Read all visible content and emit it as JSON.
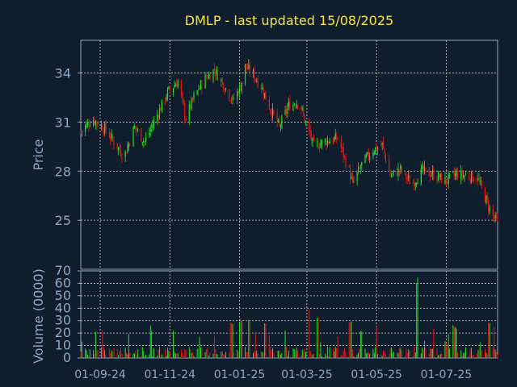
{
  "title": "DMLP - last updated 15/08/2025",
  "colors": {
    "background": "#0f1d2d",
    "axis": "#8aa9c6",
    "grid": "#c8d0d8",
    "title": "#f5e642",
    "up": "#22e022",
    "down": "#e01818"
  },
  "chart_data": [
    {
      "type": "candlestick",
      "title": "DMLP - last updated 15/08/2025",
      "ylabel": "Price",
      "ylim": [
        22,
        36
      ],
      "yticks": [
        25,
        28,
        31,
        34
      ],
      "xlim": [
        "2024-08-15",
        "2025-08-15"
      ],
      "xticks": [
        "2024-09-01",
        "2024-11-01",
        "2025-01-01",
        "2025-03-01",
        "2025-05-01",
        "2025-07-01"
      ],
      "xtick_labels": [
        "01-09-24",
        "01-11-24",
        "01-01-25",
        "01-03-25",
        "01-05-25",
        "01-07-25"
      ],
      "grid": true,
      "close_series": [
        [
          "2024-08-15",
          30.4
        ],
        [
          "2024-08-25",
          31.2
        ],
        [
          "2024-09-05",
          30.6
        ],
        [
          "2024-09-15",
          29.6
        ],
        [
          "2024-09-22",
          28.9
        ],
        [
          "2024-10-01",
          30.7
        ],
        [
          "2024-10-10",
          29.8
        ],
        [
          "2024-10-20",
          31.3
        ],
        [
          "2024-10-30",
          32.8
        ],
        [
          "2024-11-08",
          33.5
        ],
        [
          "2024-11-15",
          31.2
        ],
        [
          "2024-11-22",
          32.5
        ],
        [
          "2024-12-01",
          33.6
        ],
        [
          "2024-12-10",
          34.2
        ],
        [
          "2024-12-18",
          33.3
        ],
        [
          "2024-12-26",
          32.3
        ],
        [
          "2025-01-02",
          33.2
        ],
        [
          "2025-01-06",
          34.4
        ],
        [
          "2025-01-12",
          34.0
        ],
        [
          "2025-01-20",
          33.2
        ],
        [
          "2025-01-28",
          31.8
        ],
        [
          "2025-02-05",
          30.7
        ],
        [
          "2025-02-13",
          32.0
        ],
        [
          "2025-02-22",
          32.3
        ],
        [
          "2025-03-02",
          30.5
        ],
        [
          "2025-03-07",
          29.5
        ],
        [
          "2025-03-15",
          29.8
        ],
        [
          "2025-03-28",
          30.0
        ],
        [
          "2025-04-07",
          28.0
        ],
        [
          "2025-04-10",
          27.2
        ],
        [
          "2025-04-18",
          28.4
        ],
        [
          "2025-04-28",
          29.3
        ],
        [
          "2025-05-06",
          29.6
        ],
        [
          "2025-05-13",
          27.7
        ],
        [
          "2025-05-22",
          28.1
        ],
        [
          "2025-06-01",
          27.2
        ],
        [
          "2025-06-10",
          28.0
        ],
        [
          "2025-06-20",
          27.8
        ],
        [
          "2025-06-30",
          27.4
        ],
        [
          "2025-07-10",
          27.8
        ],
        [
          "2025-07-20",
          27.7
        ],
        [
          "2025-07-28",
          27.6
        ],
        [
          "2025-08-03",
          26.6
        ],
        [
          "2025-08-10",
          25.3
        ],
        [
          "2025-08-15",
          24.8
        ]
      ]
    },
    {
      "type": "bar",
      "ylabel": "Volume (0000)",
      "ylim": [
        0,
        70
      ],
      "yticks": [
        0,
        10,
        20,
        30,
        40,
        50,
        60,
        70
      ],
      "grid": true,
      "spikes": [
        [
          "2024-12-25",
          30
        ],
        [
          "2025-01-02",
          32
        ],
        [
          "2025-01-10",
          32
        ],
        [
          "2025-01-24",
          30
        ],
        [
          "2025-03-02",
          40
        ],
        [
          "2025-03-10",
          34
        ],
        [
          "2025-04-08",
          30
        ],
        [
          "2025-04-18",
          22
        ],
        [
          "2025-06-06",
          65
        ],
        [
          "2025-07-08",
          27
        ],
        [
          "2025-08-08",
          30
        ]
      ],
      "base_level": 7
    }
  ]
}
